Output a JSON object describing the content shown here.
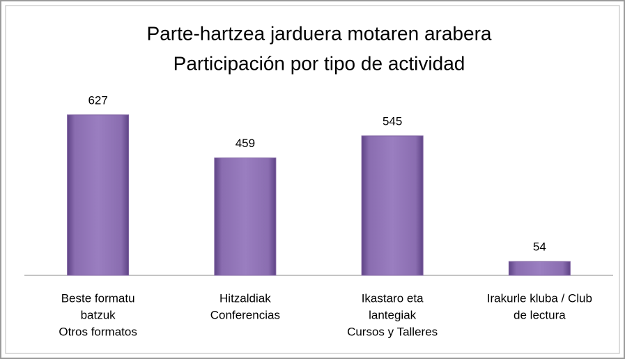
{
  "chart_data": {
    "type": "bar",
    "title": "Parte-hartzea jarduera motaren arabera",
    "subtitle": "Participación por tipo de actividad",
    "categories": [
      [
        "Beste formatu",
        "batzuk",
        "Otros formatos"
      ],
      [
        "Hitzaldiak",
        "Conferencias"
      ],
      [
        "Ikastaro eta",
        "lantegiak",
        "Cursos y Talleres"
      ],
      [
        "Irakurle kluba / Club",
        "de lectura"
      ]
    ],
    "values": [
      627,
      459,
      545,
      54
    ],
    "color": "#8064a2",
    "ylim": [
      0,
      700
    ]
  }
}
